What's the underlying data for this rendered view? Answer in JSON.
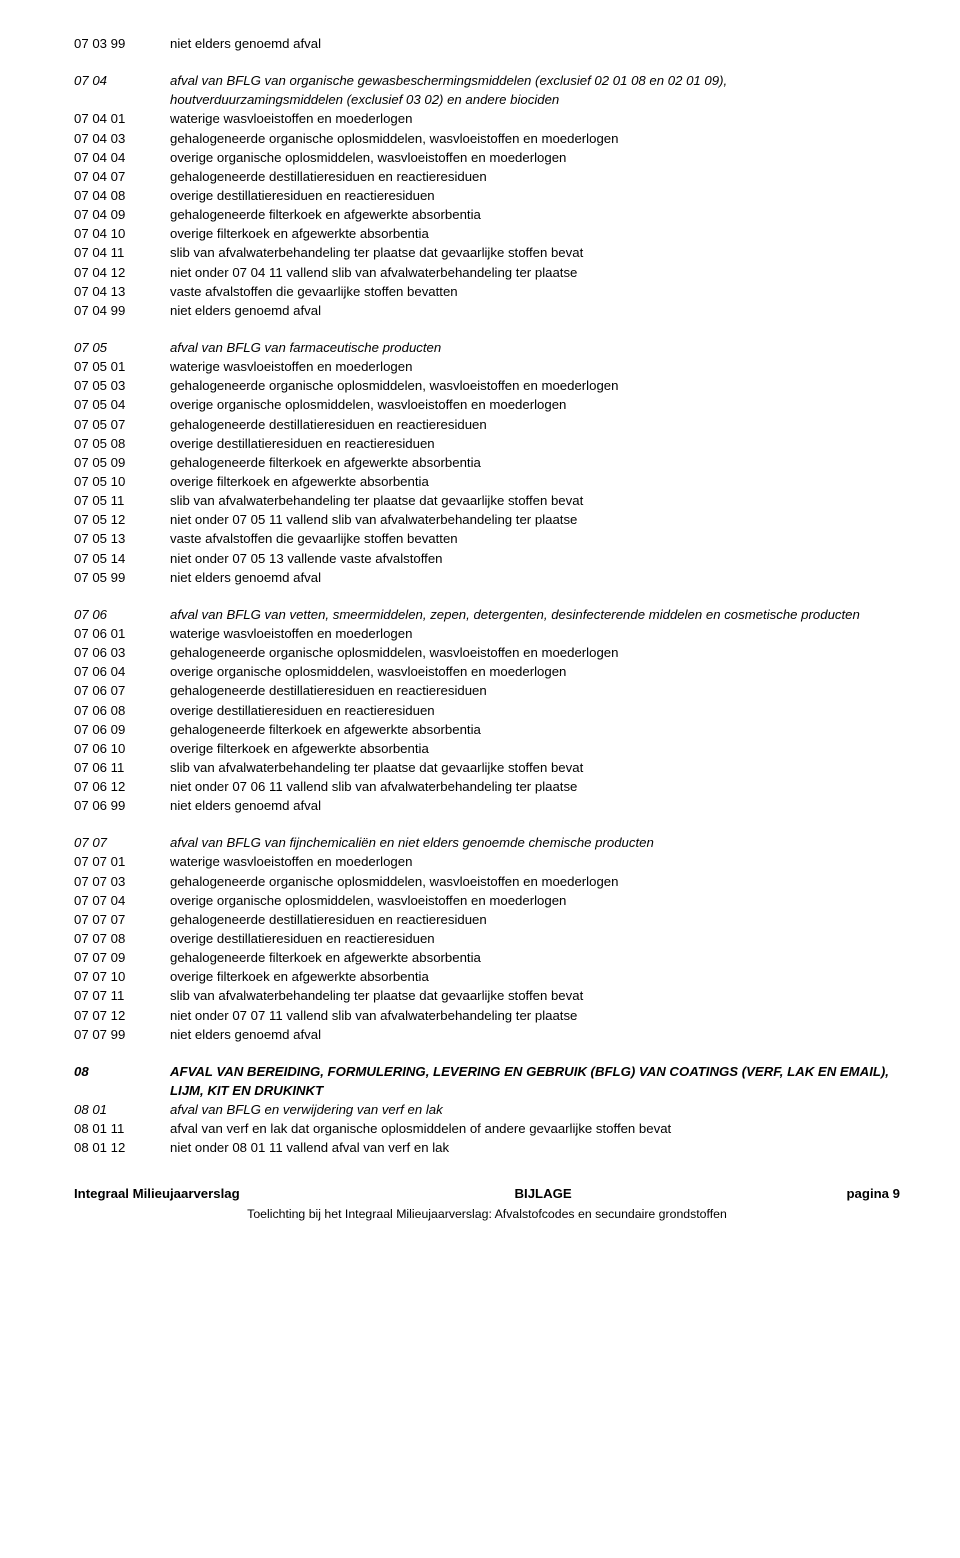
{
  "sections": [
    {
      "header": null,
      "rows": [
        {
          "code": "07 03 99",
          "desc": "niet elders genoemd afval",
          "italic": false,
          "bold": false
        }
      ]
    },
    {
      "header": {
        "code": "07 04",
        "desc": "afval van BFLG van organische gewasbeschermingsmiddelen (exclusief 02 01 08 en 02 01 09), houtverduurzamingsmiddelen (exclusief 03 02) en andere biociden",
        "italic": true,
        "bold": false
      },
      "rows": [
        {
          "code": "07 04 01",
          "desc": "waterige wasvloeistoffen en moederlogen"
        },
        {
          "code": "07 04 03",
          "desc": "gehalogeneerde organische oplosmiddelen, wasvloeistoffen en moederlogen"
        },
        {
          "code": "07 04 04",
          "desc": "overige organische oplosmiddelen, wasvloeistoffen en moederlogen"
        },
        {
          "code": "07 04 07",
          "desc": "gehalogeneerde destillatieresiduen en reactieresiduen"
        },
        {
          "code": "07 04 08",
          "desc": "overige destillatieresiduen en reactieresiduen"
        },
        {
          "code": "07 04 09",
          "desc": "gehalogeneerde filterkoek en afgewerkte absorbentia"
        },
        {
          "code": "07 04 10",
          "desc": "overige filterkoek en afgewerkte absorbentia"
        },
        {
          "code": "07 04 11",
          "desc": "slib van afvalwaterbehandeling ter plaatse dat gevaarlijke stoffen bevat"
        },
        {
          "code": "07 04 12",
          "desc": "niet onder 07 04 11 vallend slib van afvalwaterbehandeling ter plaatse"
        },
        {
          "code": "07 04 13",
          "desc": "vaste afvalstoffen die gevaarlijke stoffen bevatten"
        },
        {
          "code": "07 04 99",
          "desc": "niet elders genoemd afval"
        }
      ]
    },
    {
      "header": {
        "code": "07 05",
        "desc": "afval van BFLG van farmaceutische producten",
        "italic": true,
        "bold": false
      },
      "rows": [
        {
          "code": "07 05 01",
          "desc": "waterige wasvloeistoffen en moederlogen"
        },
        {
          "code": "07 05 03",
          "desc": "gehalogeneerde organische oplosmiddelen, wasvloeistoffen en moederlogen"
        },
        {
          "code": "07 05 04",
          "desc": "overige organische oplosmiddelen, wasvloeistoffen en moederlogen"
        },
        {
          "code": "07 05 07",
          "desc": "gehalogeneerde destillatieresiduen en reactieresiduen"
        },
        {
          "code": "07 05 08",
          "desc": "overige destillatieresiduen en reactieresiduen"
        },
        {
          "code": "07 05 09",
          "desc": "gehalogeneerde filterkoek en afgewerkte absorbentia"
        },
        {
          "code": "07 05 10",
          "desc": "overige filterkoek en afgewerkte absorbentia"
        },
        {
          "code": "07 05 11",
          "desc": "slib van afvalwaterbehandeling ter plaatse dat gevaarlijke stoffen bevat"
        },
        {
          "code": "07 05 12",
          "desc": "niet onder 07 05 11 vallend slib van afvalwaterbehandeling ter plaatse"
        },
        {
          "code": "07 05 13",
          "desc": "vaste afvalstoffen die gevaarlijke stoffen bevatten"
        },
        {
          "code": "07 05 14",
          "desc": "niet onder 07 05 13 vallende vaste afvalstoffen"
        },
        {
          "code": "07 05 99",
          "desc": "niet elders genoemd afval"
        }
      ]
    },
    {
      "header": {
        "code": "07 06",
        "desc": "afval van BFLG van vetten, smeermiddelen, zepen, detergenten, desinfecterende middelen en cosmetische producten",
        "italic": true,
        "bold": false
      },
      "rows": [
        {
          "code": "07 06 01",
          "desc": "waterige wasvloeistoffen en moederlogen"
        },
        {
          "code": "07 06 03",
          "desc": "gehalogeneerde organische oplosmiddelen, wasvloeistoffen en moederlogen"
        },
        {
          "code": "07 06 04",
          "desc": "overige organische oplosmiddelen, wasvloeistoffen en moederlogen"
        },
        {
          "code": "07 06 07",
          "desc": "gehalogeneerde destillatieresiduen en reactieresiduen"
        },
        {
          "code": "07 06 08",
          "desc": "overige destillatieresiduen en reactieresiduen"
        },
        {
          "code": "07 06 09",
          "desc": "gehalogeneerde filterkoek en afgewerkte absorbentia"
        },
        {
          "code": "07 06 10",
          "desc": "overige filterkoek en afgewerkte absorbentia"
        },
        {
          "code": "07 06 11",
          "desc": "slib van afvalwaterbehandeling ter plaatse dat gevaarlijke stoffen bevat"
        },
        {
          "code": "07 06 12",
          "desc": "niet onder 07 06 11 vallend slib van afvalwaterbehandeling ter plaatse"
        },
        {
          "code": "07 06 99",
          "desc": "niet elders genoemd afval"
        }
      ]
    },
    {
      "header": {
        "code": "07 07",
        "desc": "afval van BFLG van fijnchemicaliën en niet elders genoemde chemische producten",
        "italic": true,
        "bold": false
      },
      "rows": [
        {
          "code": "07 07 01",
          "desc": "waterige wasvloeistoffen en moederlogen"
        },
        {
          "code": "07 07 03",
          "desc": "gehalogeneerde organische oplosmiddelen, wasvloeistoffen en moederlogen"
        },
        {
          "code": "07 07 04",
          "desc": "overige organische oplosmiddelen, wasvloeistoffen en moederlogen"
        },
        {
          "code": "07 07 07",
          "desc": "gehalogeneerde destillatieresiduen en reactieresiduen"
        },
        {
          "code": "07 07 08",
          "desc": "overige destillatieresiduen en reactieresiduen"
        },
        {
          "code": "07 07 09",
          "desc": "gehalogeneerde filterkoek en afgewerkte absorbentia"
        },
        {
          "code": "07 07 10",
          "desc": "overige filterkoek en afgewerkte absorbentia"
        },
        {
          "code": "07 07 11",
          "desc": "slib van afvalwaterbehandeling ter plaatse dat gevaarlijke stoffen bevat"
        },
        {
          "code": "07 07 12",
          "desc": "niet onder 07 07 11 vallend slib van afvalwaterbehandeling ter plaatse"
        },
        {
          "code": "07 07 99",
          "desc": "niet elders genoemd afval"
        }
      ]
    },
    {
      "header": {
        "code": "08",
        "desc": "AFVAL VAN BEREIDING, FORMULERING, LEVERING EN GEBRUIK (BFLG) VAN COATINGS (VERF, LAK EN EMAIL), LIJM, KIT EN DRUKINKT",
        "italic": true,
        "bold": true
      },
      "rows": [
        {
          "code": "08 01",
          "desc": "afval van BFLG en verwijdering van verf en lak",
          "italic": true,
          "bold": false
        },
        {
          "code": "08 01 11",
          "desc": "afval van verf en lak dat organische oplosmiddelen of andere gevaarlijke stoffen bevat"
        },
        {
          "code": "08 01 12",
          "desc": "niet onder 08 01 11 vallend afval van verf en lak"
        }
      ]
    }
  ],
  "footer": {
    "left": "Integraal Milieujaarverslag",
    "center": "BIJLAGE",
    "right": "pagina 9",
    "sub": "Toelichting bij het Integraal Milieujaarverslag: Afvalstofcodes en secundaire grondstoffen"
  }
}
